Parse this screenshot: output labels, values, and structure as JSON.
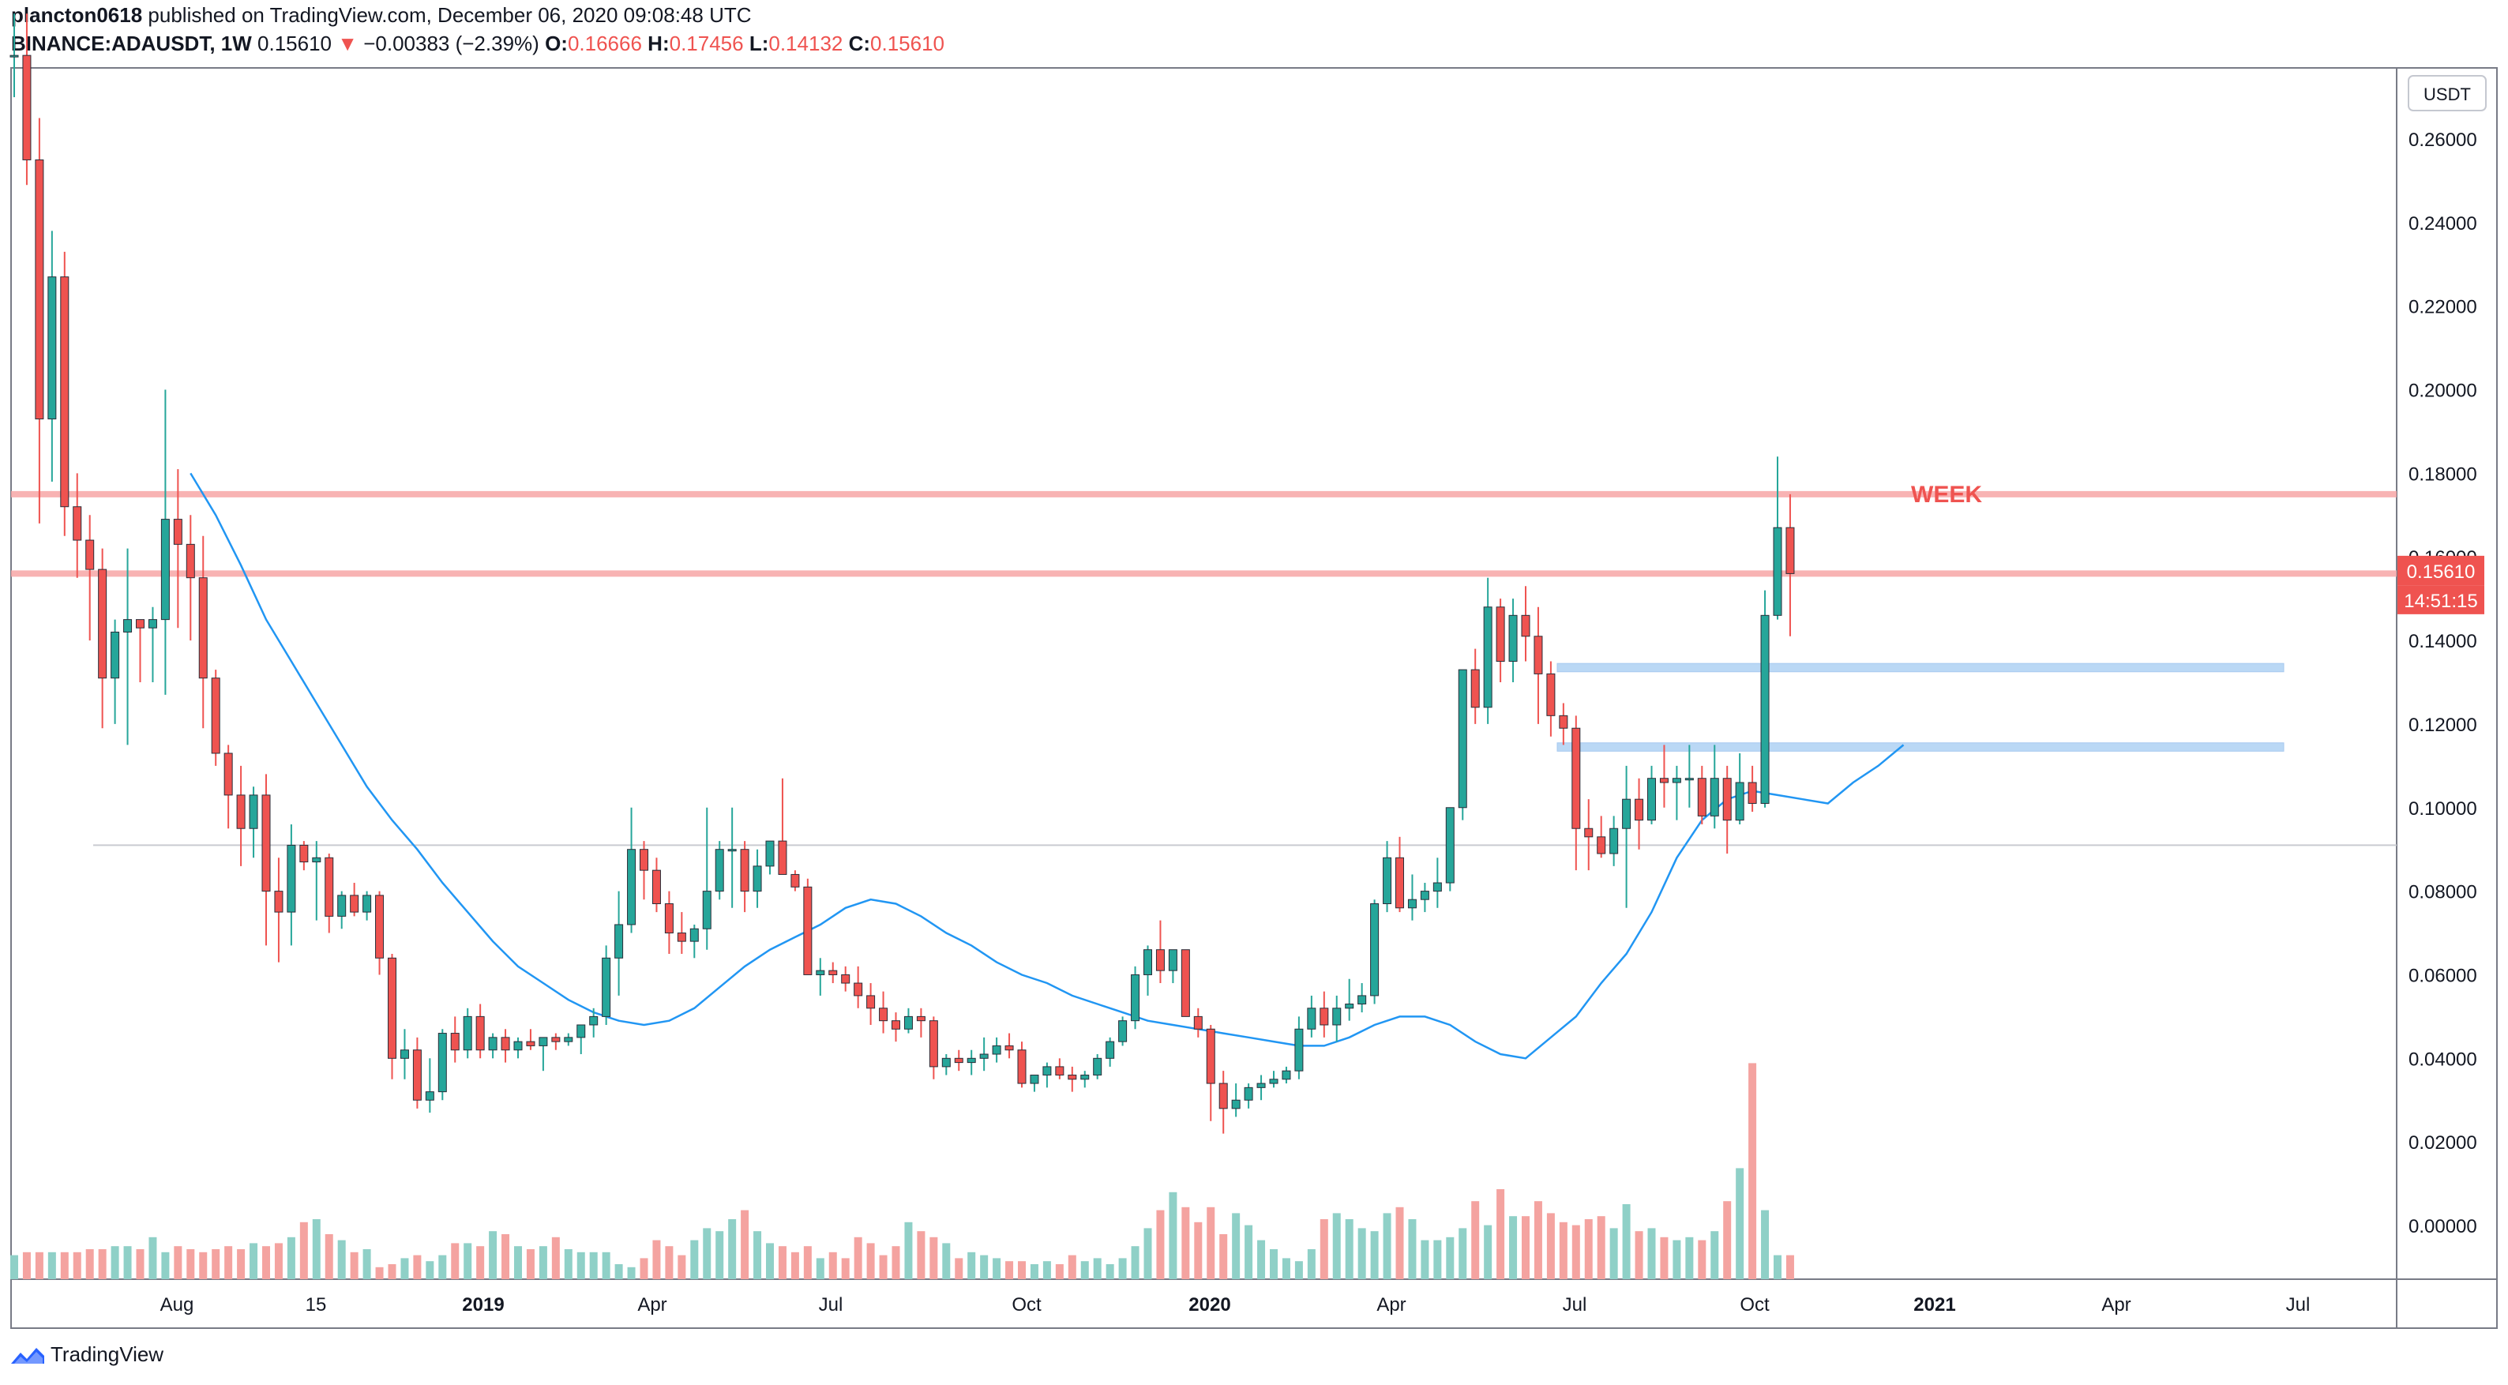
{
  "header": {
    "author": "plancton0618",
    "published": "published on TradingView.com, December 06, 2020 09:08:48 UTC",
    "symbol": "BINANCE:ADAUSDT, 1W",
    "last": "0.15610",
    "change_arrow": "▼",
    "change": "−0.00383 (−2.39%)",
    "o_label": "O:",
    "o": "0.16666",
    "h_label": "H:",
    "h": "0.17456",
    "l_label": "L:",
    "l": "0.14132",
    "c_label": "C:",
    "c": "0.15610"
  },
  "brand": {
    "name": "TradingView",
    "icon": "tradingview-logo-icon"
  },
  "chart_data": {
    "type": "candlestick",
    "symbol": "ADAUSDT",
    "interval": "1W",
    "currency_label": "USDT",
    "y_ticks": [
      "0.26000",
      "0.24000",
      "0.22000",
      "0.20000",
      "0.18000",
      "0.16000",
      "0.14000",
      "0.12000",
      "0.10000",
      "0.08000",
      "0.06000",
      "0.04000",
      "0.02000",
      "0.00000"
    ],
    "x_ticks": [
      "Aug",
      "15",
      "2019",
      "Apr",
      "Jul",
      "Oct",
      "2020",
      "Apr",
      "Jul",
      "Oct",
      "2021",
      "Apr",
      "Jul"
    ],
    "last_price_label": "0.15610",
    "countdown_label": "14:51:15",
    "annotation": "WEEK",
    "colors": {
      "up": "#26a69a",
      "down": "#ef5350",
      "ma": "#2196f3",
      "resistance": "#f7a6a6",
      "support": "#b3d4f5",
      "grey_line": "#c9cbd1"
    },
    "resistance_levels": [
      0.175,
      0.156
    ],
    "support_zones": [
      [
        0.1325,
        0.1345
      ],
      [
        0.1135,
        0.1155
      ]
    ],
    "grey_level": 0.091,
    "candles_ohlc": [
      [
        0.28,
        0.29,
        0.27,
        0.28
      ],
      [
        0.28,
        0.29,
        0.249,
        0.255
      ],
      [
        0.255,
        0.265,
        0.168,
        0.193
      ],
      [
        0.193,
        0.238,
        0.178,
        0.227
      ],
      [
        0.227,
        0.233,
        0.165,
        0.172
      ],
      [
        0.172,
        0.18,
        0.155,
        0.164
      ],
      [
        0.164,
        0.17,
        0.14,
        0.157
      ],
      [
        0.157,
        0.162,
        0.119,
        0.131
      ],
      [
        0.131,
        0.145,
        0.12,
        0.142
      ],
      [
        0.142,
        0.162,
        0.115,
        0.145
      ],
      [
        0.145,
        0.145,
        0.13,
        0.143
      ],
      [
        0.143,
        0.148,
        0.13,
        0.145
      ],
      [
        0.145,
        0.2,
        0.127,
        0.169
      ],
      [
        0.169,
        0.181,
        0.143,
        0.163
      ],
      [
        0.163,
        0.17,
        0.14,
        0.155
      ],
      [
        0.155,
        0.165,
        0.119,
        0.131
      ],
      [
        0.131,
        0.133,
        0.11,
        0.113
      ],
      [
        0.113,
        0.115,
        0.095,
        0.103
      ],
      [
        0.103,
        0.11,
        0.086,
        0.095
      ],
      [
        0.095,
        0.105,
        0.088,
        0.103
      ],
      [
        0.103,
        0.108,
        0.067,
        0.08
      ],
      [
        0.08,
        0.088,
        0.063,
        0.075
      ],
      [
        0.075,
        0.096,
        0.067,
        0.091
      ],
      [
        0.091,
        0.092,
        0.085,
        0.087
      ],
      [
        0.087,
        0.092,
        0.073,
        0.088
      ],
      [
        0.088,
        0.089,
        0.07,
        0.074
      ],
      [
        0.074,
        0.08,
        0.071,
        0.079
      ],
      [
        0.079,
        0.082,
        0.074,
        0.075
      ],
      [
        0.075,
        0.08,
        0.073,
        0.079
      ],
      [
        0.079,
        0.08,
        0.06,
        0.064
      ],
      [
        0.064,
        0.065,
        0.035,
        0.04
      ],
      [
        0.04,
        0.047,
        0.035,
        0.042
      ],
      [
        0.042,
        0.045,
        0.028,
        0.03
      ],
      [
        0.03,
        0.04,
        0.027,
        0.032
      ],
      [
        0.032,
        0.047,
        0.03,
        0.046
      ],
      [
        0.046,
        0.05,
        0.039,
        0.042
      ],
      [
        0.042,
        0.052,
        0.04,
        0.05
      ],
      [
        0.05,
        0.053,
        0.04,
        0.042
      ],
      [
        0.042,
        0.046,
        0.04,
        0.045
      ],
      [
        0.045,
        0.047,
        0.039,
        0.042
      ],
      [
        0.042,
        0.045,
        0.04,
        0.044
      ],
      [
        0.044,
        0.047,
        0.042,
        0.043
      ],
      [
        0.043,
        0.045,
        0.037,
        0.045
      ],
      [
        0.045,
        0.046,
        0.042,
        0.044
      ],
      [
        0.044,
        0.046,
        0.043,
        0.045
      ],
      [
        0.045,
        0.047,
        0.041,
        0.048
      ],
      [
        0.048,
        0.052,
        0.045,
        0.05
      ],
      [
        0.05,
        0.067,
        0.048,
        0.064
      ],
      [
        0.064,
        0.08,
        0.055,
        0.072
      ],
      [
        0.072,
        0.1,
        0.07,
        0.09
      ],
      [
        0.09,
        0.092,
        0.078,
        0.085
      ],
      [
        0.085,
        0.088,
        0.075,
        0.077
      ],
      [
        0.077,
        0.08,
        0.065,
        0.07
      ],
      [
        0.07,
        0.075,
        0.065,
        0.068
      ],
      [
        0.068,
        0.072,
        0.064,
        0.071
      ],
      [
        0.071,
        0.1,
        0.066,
        0.08
      ],
      [
        0.08,
        0.092,
        0.078,
        0.09
      ],
      [
        0.09,
        0.1,
        0.076,
        0.09
      ],
      [
        0.09,
        0.092,
        0.075,
        0.08
      ],
      [
        0.08,
        0.09,
        0.076,
        0.086
      ],
      [
        0.086,
        0.092,
        0.084,
        0.092
      ],
      [
        0.092,
        0.107,
        0.084,
        0.084
      ],
      [
        0.084,
        0.085,
        0.08,
        0.081
      ],
      [
        0.081,
        0.083,
        0.06,
        0.06
      ],
      [
        0.06,
        0.064,
        0.055,
        0.061
      ],
      [
        0.061,
        0.063,
        0.058,
        0.06
      ],
      [
        0.06,
        0.062,
        0.056,
        0.058
      ],
      [
        0.058,
        0.062,
        0.052,
        0.055
      ],
      [
        0.055,
        0.058,
        0.048,
        0.052
      ],
      [
        0.052,
        0.056,
        0.046,
        0.049
      ],
      [
        0.049,
        0.051,
        0.044,
        0.047
      ],
      [
        0.047,
        0.052,
        0.046,
        0.05
      ],
      [
        0.05,
        0.052,
        0.045,
        0.049
      ],
      [
        0.049,
        0.05,
        0.035,
        0.038
      ],
      [
        0.038,
        0.041,
        0.036,
        0.04
      ],
      [
        0.04,
        0.042,
        0.037,
        0.039
      ],
      [
        0.039,
        0.042,
        0.036,
        0.04
      ],
      [
        0.04,
        0.045,
        0.037,
        0.041
      ],
      [
        0.041,
        0.045,
        0.039,
        0.043
      ],
      [
        0.043,
        0.046,
        0.04,
        0.042
      ],
      [
        0.042,
        0.044,
        0.033,
        0.034
      ],
      [
        0.034,
        0.036,
        0.032,
        0.036
      ],
      [
        0.036,
        0.039,
        0.033,
        0.038
      ],
      [
        0.038,
        0.04,
        0.035,
        0.036
      ],
      [
        0.036,
        0.038,
        0.032,
        0.035
      ],
      [
        0.035,
        0.037,
        0.033,
        0.036
      ],
      [
        0.036,
        0.041,
        0.035,
        0.04
      ],
      [
        0.04,
        0.045,
        0.038,
        0.044
      ],
      [
        0.044,
        0.05,
        0.043,
        0.049
      ],
      [
        0.049,
        0.062,
        0.047,
        0.06
      ],
      [
        0.06,
        0.067,
        0.055,
        0.066
      ],
      [
        0.066,
        0.073,
        0.058,
        0.061
      ],
      [
        0.061,
        0.066,
        0.058,
        0.066
      ],
      [
        0.066,
        0.066,
        0.05,
        0.05
      ],
      [
        0.05,
        0.052,
        0.045,
        0.047
      ],
      [
        0.047,
        0.048,
        0.025,
        0.034
      ],
      [
        0.034,
        0.037,
        0.022,
        0.028
      ],
      [
        0.028,
        0.034,
        0.026,
        0.03
      ],
      [
        0.03,
        0.034,
        0.028,
        0.033
      ],
      [
        0.033,
        0.036,
        0.03,
        0.034
      ],
      [
        0.034,
        0.037,
        0.033,
        0.035
      ],
      [
        0.035,
        0.038,
        0.034,
        0.037
      ],
      [
        0.037,
        0.05,
        0.035,
        0.047
      ],
      [
        0.047,
        0.055,
        0.045,
        0.052
      ],
      [
        0.052,
        0.056,
        0.045,
        0.048
      ],
      [
        0.048,
        0.055,
        0.044,
        0.052
      ],
      [
        0.052,
        0.059,
        0.049,
        0.053
      ],
      [
        0.053,
        0.058,
        0.051,
        0.055
      ],
      [
        0.055,
        0.078,
        0.053,
        0.077
      ],
      [
        0.077,
        0.092,
        0.075,
        0.088
      ],
      [
        0.088,
        0.093,
        0.075,
        0.076
      ],
      [
        0.076,
        0.084,
        0.073,
        0.078
      ],
      [
        0.078,
        0.082,
        0.075,
        0.08
      ],
      [
        0.08,
        0.088,
        0.076,
        0.082
      ],
      [
        0.082,
        0.1,
        0.08,
        0.1
      ],
      [
        0.1,
        0.13,
        0.097,
        0.133
      ],
      [
        0.133,
        0.138,
        0.12,
        0.124
      ],
      [
        0.124,
        0.155,
        0.12,
        0.148
      ],
      [
        0.148,
        0.15,
        0.13,
        0.135
      ],
      [
        0.135,
        0.15,
        0.13,
        0.146
      ],
      [
        0.146,
        0.153,
        0.135,
        0.141
      ],
      [
        0.141,
        0.148,
        0.12,
        0.132
      ],
      [
        0.132,
        0.135,
        0.117,
        0.122
      ],
      [
        0.122,
        0.125,
        0.115,
        0.119
      ],
      [
        0.119,
        0.122,
        0.085,
        0.095
      ],
      [
        0.095,
        0.102,
        0.085,
        0.093
      ],
      [
        0.093,
        0.098,
        0.088,
        0.089
      ],
      [
        0.089,
        0.098,
        0.086,
        0.095
      ],
      [
        0.095,
        0.11,
        0.076,
        0.102
      ],
      [
        0.102,
        0.107,
        0.09,
        0.097
      ],
      [
        0.097,
        0.11,
        0.096,
        0.107
      ],
      [
        0.107,
        0.115,
        0.1,
        0.106
      ],
      [
        0.106,
        0.11,
        0.097,
        0.107
      ],
      [
        0.107,
        0.115,
        0.1,
        0.107
      ],
      [
        0.107,
        0.11,
        0.096,
        0.098
      ],
      [
        0.098,
        0.115,
        0.095,
        0.107
      ],
      [
        0.107,
        0.11,
        0.089,
        0.097
      ],
      [
        0.097,
        0.113,
        0.096,
        0.106
      ],
      [
        0.106,
        0.11,
        0.099,
        0.101
      ],
      [
        0.101,
        0.152,
        0.1,
        0.146
      ],
      [
        0.146,
        0.184,
        0.145,
        0.167
      ],
      [
        0.167,
        0.175,
        0.141,
        0.156
      ]
    ],
    "volume_scale": [
      0.08,
      0.09,
      0.09,
      0.09,
      0.09,
      0.09,
      0.1,
      0.1,
      0.11,
      0.11,
      0.1,
      0.14,
      0.09,
      0.11,
      0.1,
      0.09,
      0.1,
      0.11,
      0.1,
      0.12,
      0.11,
      0.12,
      0.14,
      0.19,
      0.2,
      0.15,
      0.13,
      0.09,
      0.1,
      0.04,
      0.05,
      0.07,
      0.08,
      0.06,
      0.08,
      0.12,
      0.12,
      0.11,
      0.16,
      0.15,
      0.11,
      0.1,
      0.11,
      0.14,
      0.1,
      0.09,
      0.09,
      0.09,
      0.05,
      0.04,
      0.07,
      0.13,
      0.11,
      0.08,
      0.13,
      0.17,
      0.16,
      0.2,
      0.23,
      0.16,
      0.12,
      0.11,
      0.09,
      0.11,
      0.07,
      0.09,
      0.07,
      0.14,
      0.12,
      0.08,
      0.11,
      0.19,
      0.16,
      0.14,
      0.12,
      0.07,
      0.09,
      0.08,
      0.07,
      0.06,
      0.06,
      0.05,
      0.06,
      0.05,
      0.08,
      0.06,
      0.07,
      0.05,
      0.07,
      0.11,
      0.17,
      0.23,
      0.29,
      0.24,
      0.19,
      0.24,
      0.15,
      0.22,
      0.18,
      0.13,
      0.1,
      0.07,
      0.06,
      0.1,
      0.2,
      0.22,
      0.2,
      0.17,
      0.16,
      0.22,
      0.24,
      0.2,
      0.13,
      0.13,
      0.14,
      0.17,
      0.26,
      0.18,
      0.3,
      0.21,
      0.21,
      0.26,
      0.22,
      0.19,
      0.18,
      0.2,
      0.21,
      0.17,
      0.25,
      0.16,
      0.17,
      0.14,
      0.13,
      0.14,
      0.13,
      0.16,
      0.26,
      0.37,
      0.72,
      0.23
    ],
    "ma_values": [
      0.18,
      0.17,
      0.158,
      0.145,
      0.135,
      0.125,
      0.115,
      0.105,
      0.097,
      0.09,
      0.082,
      0.075,
      0.068,
      0.062,
      0.058,
      0.054,
      0.051,
      0.049,
      0.048,
      0.049,
      0.052,
      0.057,
      0.062,
      0.066,
      0.069,
      0.072,
      0.076,
      0.078,
      0.077,
      0.074,
      0.07,
      0.067,
      0.063,
      0.06,
      0.058,
      0.055,
      0.053,
      0.051,
      0.049,
      0.048,
      0.047,
      0.046,
      0.045,
      0.044,
      0.043,
      0.043,
      0.045,
      0.048,
      0.05,
      0.05,
      0.048,
      0.044,
      0.041,
      0.04,
      0.045,
      0.05,
      0.058,
      0.065,
      0.075,
      0.088,
      0.097,
      0.102,
      0.104,
      0.103,
      0.102,
      0.101,
      0.106,
      0.11,
      0.115
    ],
    "ma_start_index": 14,
    "ma_step": 2
  }
}
